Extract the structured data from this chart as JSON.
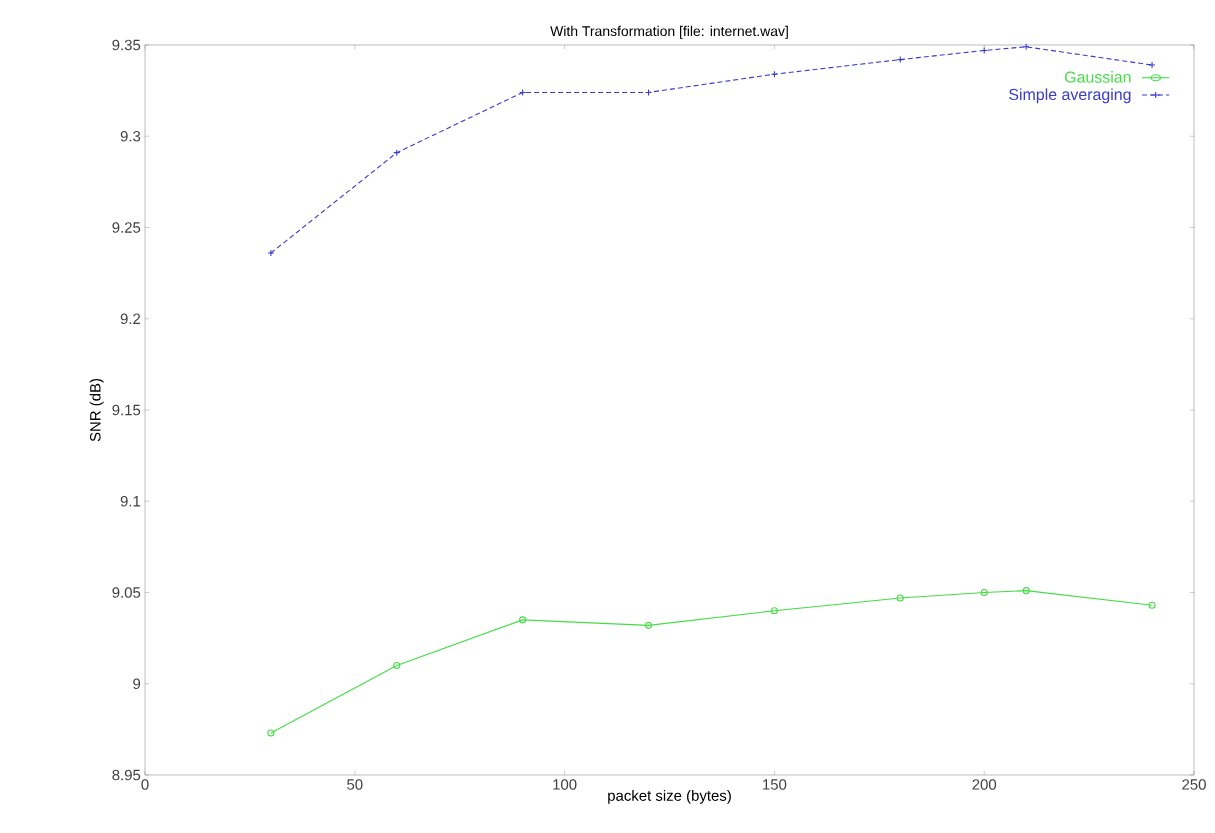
{
  "chart_data": {
    "type": "line",
    "title": "With Transformation [file: internet.wav]",
    "xlabel": "packet size (bytes)",
    "ylabel": "SNR (dB)",
    "xlim": [
      0,
      250
    ],
    "xticks": [
      0,
      50,
      100,
      150,
      200,
      250
    ],
    "ylim": [
      8.95,
      9.35
    ],
    "yticks": [
      8.95,
      9,
      9.05,
      9.1,
      9.15,
      9.2,
      9.25,
      9.3,
      9.35
    ],
    "grid": false,
    "legend": "top right",
    "series": [
      {
        "name": "Gaussian",
        "color": "#44dd44",
        "marker": "circle",
        "line_style": "solid",
        "x": [
          30,
          60,
          90,
          120,
          150,
          180,
          200,
          210,
          240
        ],
        "values": [
          8.973,
          9.01,
          9.035,
          9.032,
          9.04,
          9.047,
          9.05,
          9.051,
          9.043
        ]
      },
      {
        "name": "Simple averaging",
        "color": "#3a3ad0",
        "marker": "cross",
        "line_style": "dashed",
        "x": [
          30,
          60,
          90,
          120,
          150,
          180,
          200,
          210,
          240
        ],
        "values": [
          9.236,
          9.291,
          9.324,
          9.324,
          9.334,
          9.342,
          9.347,
          9.349,
          9.339
        ]
      }
    ]
  }
}
